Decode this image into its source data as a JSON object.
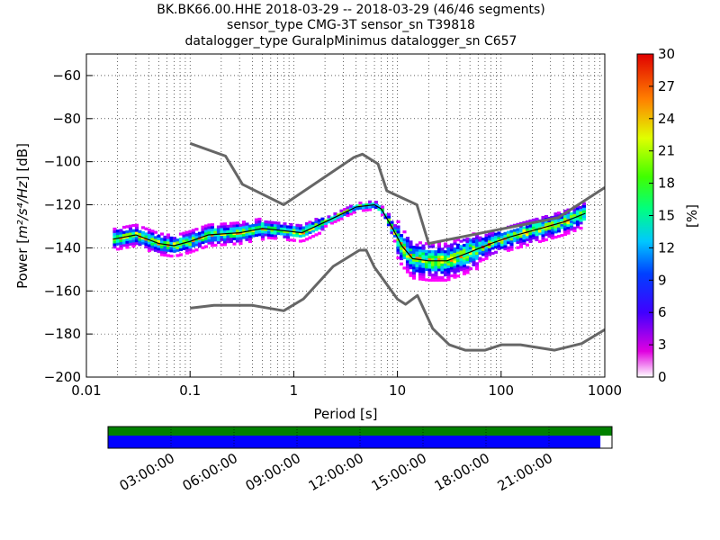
{
  "title_lines": [
    "BK.BK66.00.HHE   2018-03-29 -- 2018-03-29  (46/46 segments)",
    "sensor_type CMG-3T sensor_sn T39818",
    "datalogger_type GuralpMinimus datalogger_sn C657"
  ],
  "chart_data": {
    "type": "heatmap",
    "x_label": "Period [s]",
    "x_scale": "log",
    "x_lim": [
      0.01,
      1000
    ],
    "x_ticks": [
      {
        "value": 0.01,
        "label": "0.01"
      },
      {
        "value": 0.1,
        "label": "0.1"
      },
      {
        "value": 1,
        "label": "1"
      },
      {
        "value": 10,
        "label": "10"
      },
      {
        "value": 100,
        "label": "100"
      },
      {
        "value": 1000,
        "label": "1000"
      }
    ],
    "y_label_prefix": "Power [",
    "y_label_unit_html": "m²/s⁴/Hz",
    "y_label_suffix": "] [dB]",
    "y_lim": [
      -200,
      -50
    ],
    "y_ticks": [
      {
        "value": -60,
        "label": "−60"
      },
      {
        "value": -80,
        "label": "−80"
      },
      {
        "value": -100,
        "label": "−100"
      },
      {
        "value": -120,
        "label": "−120"
      },
      {
        "value": -140,
        "label": "−140"
      },
      {
        "value": -160,
        "label": "−160"
      },
      {
        "value": -180,
        "label": "−180"
      },
      {
        "value": -200,
        "label": "−200"
      }
    ],
    "grid": "dotted",
    "noise_models": [
      {
        "points": [
          [
            0.1,
            -91.5
          ],
          [
            0.22,
            -97.4
          ],
          [
            0.32,
            -110.5
          ],
          [
            0.8,
            -120
          ],
          [
            3.8,
            -98
          ],
          [
            4.6,
            -96.5
          ],
          [
            6.5,
            -101
          ],
          [
            7.9,
            -113.5
          ],
          [
            15.4,
            -120
          ],
          [
            20,
            -138
          ],
          [
            354.8,
            -126
          ],
          [
            1000,
            -112
          ]
        ]
      },
      {
        "points": [
          [
            0.1,
            -168
          ],
          [
            0.17,
            -166.7
          ],
          [
            0.4,
            -166.7
          ],
          [
            0.8,
            -169.2
          ],
          [
            1.24,
            -163.7
          ],
          [
            2.4,
            -148.6
          ],
          [
            4.3,
            -141.1
          ],
          [
            5,
            -141.1
          ],
          [
            6,
            -149
          ],
          [
            10,
            -163.8
          ],
          [
            12,
            -166.2
          ],
          [
            15.6,
            -162.1
          ],
          [
            21.9,
            -177.5
          ],
          [
            31.6,
            -185
          ],
          [
            45,
            -187.5
          ],
          [
            70,
            -187.5
          ],
          [
            101,
            -185
          ],
          [
            154,
            -185
          ],
          [
            328,
            -187.5
          ],
          [
            600,
            -184.4
          ],
          [
            1000,
            -178
          ]
        ]
      }
    ],
    "psd_band": {
      "period_range": [
        0.018,
        650
      ],
      "mode_curve": [
        [
          0.018,
          -136
        ],
        [
          0.03,
          -134
        ],
        [
          0.05,
          -138
        ],
        [
          0.07,
          -139
        ],
        [
          0.1,
          -137
        ],
        [
          0.15,
          -134
        ],
        [
          0.3,
          -133
        ],
        [
          0.5,
          -131
        ],
        [
          0.8,
          -132
        ],
        [
          1.2,
          -133
        ],
        [
          2,
          -128
        ],
        [
          3,
          -124
        ],
        [
          4,
          -121
        ],
        [
          6,
          -120
        ],
        [
          7,
          -122
        ],
        [
          9,
          -131
        ],
        [
          11,
          -139
        ],
        [
          14,
          -145
        ],
        [
          20,
          -146
        ],
        [
          30,
          -146
        ],
        [
          50,
          -142
        ],
        [
          80,
          -138
        ],
        [
          120,
          -135
        ],
        [
          200,
          -132
        ],
        [
          400,
          -128
        ],
        [
          650,
          -124
        ]
      ]
    },
    "colorbar": {
      "label": "[%]",
      "range": [
        0,
        30
      ],
      "ticks": [
        0,
        3,
        6,
        9,
        12,
        15,
        18,
        21,
        24,
        27,
        30
      ]
    }
  },
  "coverage": {
    "green_fraction": 1.0,
    "blue_fraction": 0.977,
    "time_labels": [
      "03:00:00",
      "06:00:00",
      "09:00:00",
      "12:00:00",
      "15:00:00",
      "18:00:00",
      "21:00:00"
    ],
    "colors": {
      "data": "#008000",
      "gaps": "#0000ff"
    }
  }
}
